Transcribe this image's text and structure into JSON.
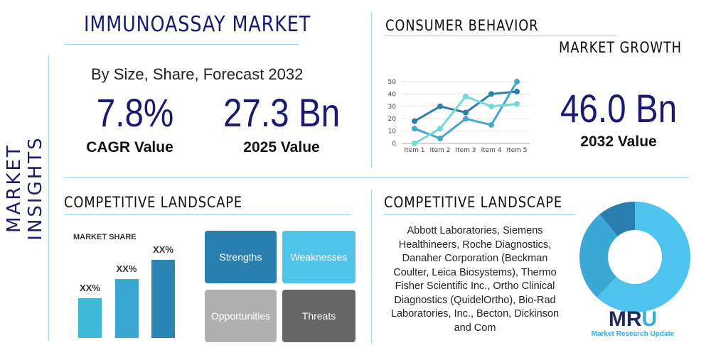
{
  "side_label": "MARKET INSIGHTS",
  "title": "IMMUNOASSAY MARKET",
  "subtitle": "By Size, Share, Forecast 2032",
  "cagr": {
    "value": "7.8%",
    "label": "CAGR Value"
  },
  "current": {
    "value": "27.3 Bn",
    "label": "2025 Value"
  },
  "consumer_heading": "CONSUMER BEHAVIOR",
  "growth_heading": "MARKET GROWTH",
  "forecast": {
    "value": "46.0 Bn",
    "label": "2032 Value"
  },
  "competitive_left_heading": "COMPETITIVE LANDSCAPE",
  "competitive_right_heading": "COMPETITIVE LANDSCAPE",
  "market_share": {
    "title": "MARKET SHARE",
    "bars": [
      {
        "label": "XX%",
        "level": 0.35
      },
      {
        "label": "XX%",
        "level": 0.52
      },
      {
        "label": "XX%",
        "level": 0.69
      }
    ]
  },
  "swot": {
    "strengths": "Strengths",
    "weaknesses": "Weaknesses",
    "opportunities": "Opportunities",
    "threats": "Threats"
  },
  "companies": "Abbott Laboratories, Siemens Healthineers, Roche Diagnostics, Danaher Corporation (Beckman Coulter, Leica Biosystems), Thermo Fisher Scientific Inc., Ortho Clinical Diagnostics (QuidelOrtho), Bio-Rad Laboratories, Inc., Becton, Dickinson and Com",
  "logo": {
    "mark": "MRU",
    "name": "Market Research Update"
  },
  "colors": {
    "navy": "#1a1a6e",
    "dark": "#2a7fb0",
    "mid": "#3aa0cc",
    "light": "#4fc3ea",
    "teal": "#6fd6e0",
    "grey": "#b0b0b0",
    "darkgrey": "#666666"
  },
  "chart_data": [
    {
      "type": "line",
      "categories": [
        "Item 1",
        "Item 2",
        "Item 3",
        "Item 4",
        "Item 5"
      ],
      "ylim": [
        0,
        50
      ],
      "yticks": [
        0,
        10,
        20,
        30,
        40,
        50
      ],
      "grid": true,
      "series": [
        {
          "values": [
            18,
            30,
            25,
            40,
            42
          ],
          "color": "#2e7fa8"
        },
        {
          "values": [
            12,
            4,
            20,
            15,
            50
          ],
          "color": "#44a6c6"
        },
        {
          "values": [
            0,
            12,
            38,
            30,
            32
          ],
          "color": "#72d6dc"
        }
      ]
    },
    {
      "type": "pie",
      "donut": true,
      "values": [
        62,
        27,
        11
      ],
      "colors": [
        "#4fc3ef",
        "#3aa9d6",
        "#2a7fb0"
      ]
    }
  ]
}
